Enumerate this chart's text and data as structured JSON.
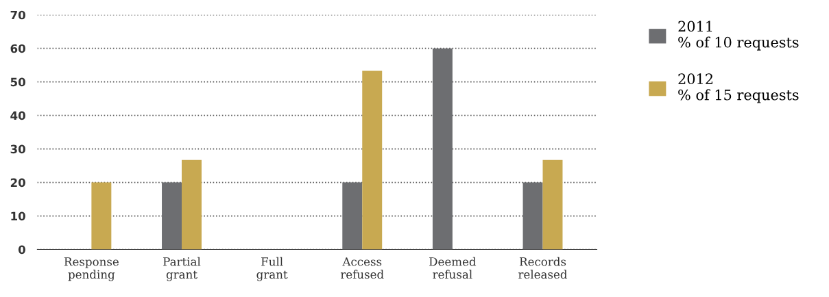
{
  "chart_data": {
    "type": "bar",
    "categories": [
      "Response\npending",
      "Partial\ngrant",
      "Full\ngrant",
      "Access\nrefused",
      "Deemed\nrefusal",
      "Records\nreleased"
    ],
    "series": [
      {
        "name": "2011\n% of 10 requests",
        "color": "#6d6e71",
        "values": [
          0,
          20,
          0,
          20,
          60,
          20
        ]
      },
      {
        "name": "2012\n% of 15 requests",
        "color": "#c8a951",
        "values": [
          20,
          26.7,
          0,
          53.3,
          0,
          26.7
        ]
      }
    ],
    "ylim": [
      0,
      70
    ],
    "yticks": [
      0,
      10,
      20,
      30,
      40,
      50,
      60,
      70
    ],
    "grid": "y",
    "legend": "right"
  }
}
